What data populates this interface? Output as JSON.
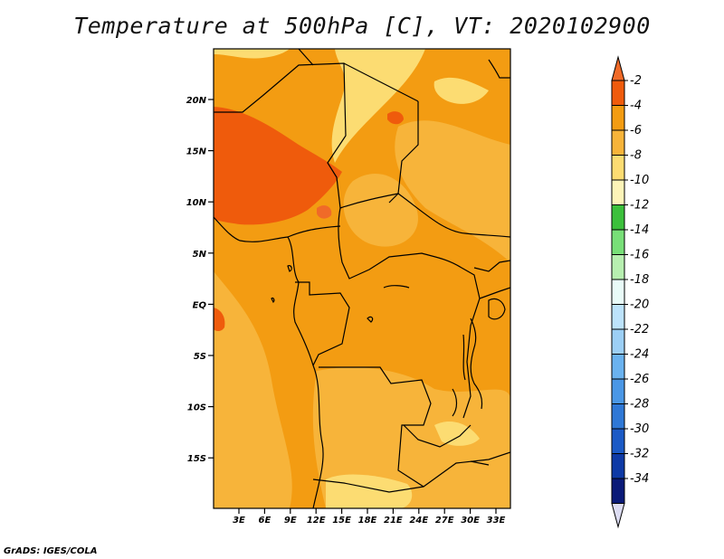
{
  "title": "Temperature at 500hPa [C], VT: 2020102900",
  "footer": "GrADS: IGES/COLA",
  "lat_ticks": [
    "20N",
    "15N",
    "10N",
    "5N",
    "EQ",
    "5S",
    "10S",
    "15S"
  ],
  "lon_ticks": [
    "3E",
    "6E",
    "9E",
    "12E",
    "15E",
    "18E",
    "21E",
    "24E",
    "27E",
    "30E",
    "33E"
  ],
  "colorbar": {
    "labels": [
      "-2",
      "-4",
      "-6",
      "-8",
      "-10",
      "-12",
      "-14",
      "-16",
      "-18",
      "-20",
      "-22",
      "-24",
      "-26",
      "-28",
      "-30",
      "-32",
      "-34"
    ],
    "colors": [
      "#f06a28",
      "#ef5b0c",
      "#f39c12",
      "#f7b43a",
      "#fcdc72",
      "#fdf4b8",
      "#3cc03c",
      "#78df78",
      "#b7efb0",
      "#e9fbf8",
      "#bde3fb",
      "#9ccff5",
      "#6ab2ef",
      "#4a97e6",
      "#2f78d6",
      "#1b5ac6",
      "#0e3aa6",
      "#0a1a78",
      "#dcdcf2"
    ]
  }
}
